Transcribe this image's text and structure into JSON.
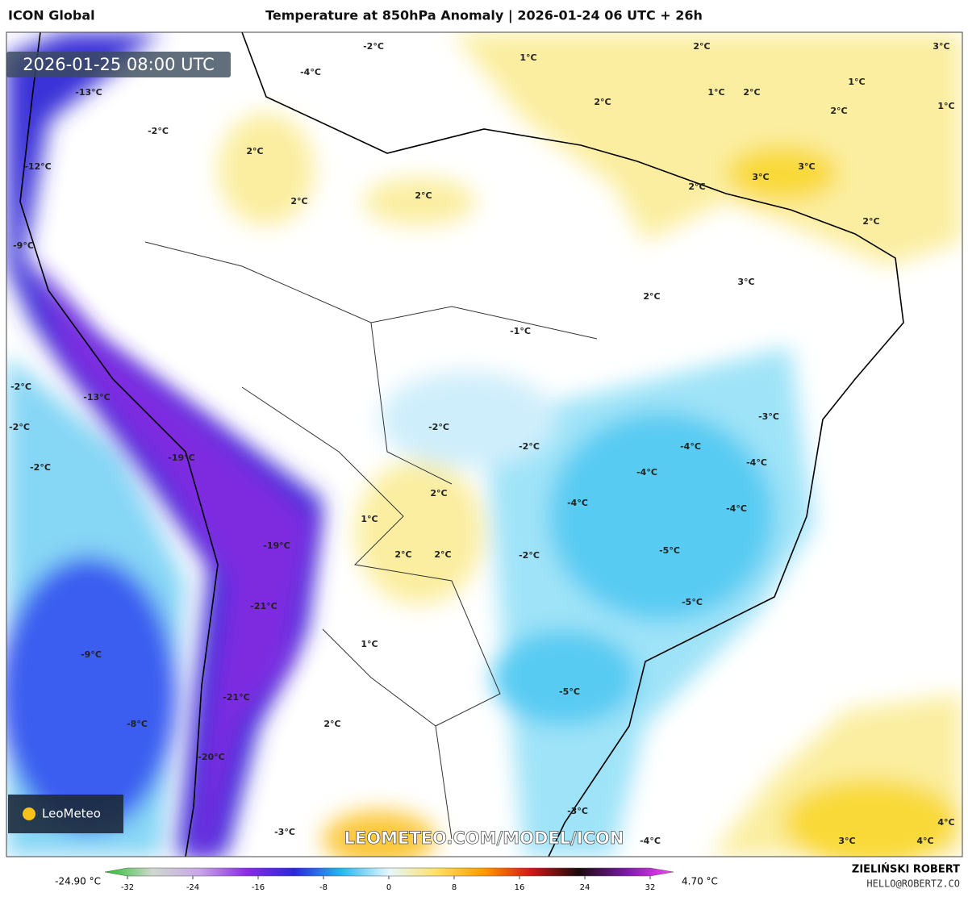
{
  "header": {
    "model": "ICON Global",
    "title": "Temperature at 850hPa Anomaly | 2026-01-24 06 UTC + 26h"
  },
  "timestamp": "2026-01-25 08:00 UTC",
  "watermark": "LEOMETEO.COM/MODEL/ICON",
  "logo": "LeoMeteo",
  "labels": [
    "-2°C",
    "1°C",
    "2°C",
    "3°C",
    "-4°C",
    "-13°C",
    "1°C",
    "1°C",
    "2°C",
    "2°C",
    "1°C",
    "2°C",
    "-2°C",
    "2°C",
    "-12°C",
    "3°C",
    "3°C",
    "2°C",
    "2°C",
    "2°C",
    "2°C",
    "-9°C",
    "3°C",
    "2°C",
    "-1°C",
    "-2°C",
    "-13°C",
    "-3°C",
    "-2°C",
    "-2°C",
    "-2°C",
    "-4°C",
    "-19°C",
    "-2°C",
    "-4°C",
    "-4°C",
    "2°C",
    "-4°C",
    "-4°C",
    "1°C",
    "-19°C",
    "-5°C",
    "2°C",
    "2°C",
    "-2°C",
    "-21°C",
    "-5°C",
    "1°C",
    "-9°C",
    "-5°C",
    "-21°C",
    "-8°C",
    "2°C",
    "-20°C",
    "-3°C",
    "-3°C",
    "-4°C",
    "3°C",
    "4°C",
    "4°C"
  ],
  "colorbar": {
    "min_label": "-24.90 °C",
    "max_label": "4.70 °C",
    "lim": [
      -32,
      32
    ],
    "ticks": [
      -32,
      -24,
      -16,
      -8,
      0,
      8,
      16,
      24,
      32
    ],
    "colors": [
      "#22c02a",
      "#cfd8cf",
      "#c9a6e8",
      "#8a2be2",
      "#2a2ad8",
      "#26b8f0",
      "#e6f8ff",
      "#ffe066",
      "#ff9a00",
      "#d01818",
      "#1a0a0a",
      "#7a1aa8",
      "#ff40ff"
    ]
  },
  "footer": {
    "author": "ZIELIŃSKI ROBERT",
    "contact": "HELLO@ROBERTZ.CO"
  }
}
